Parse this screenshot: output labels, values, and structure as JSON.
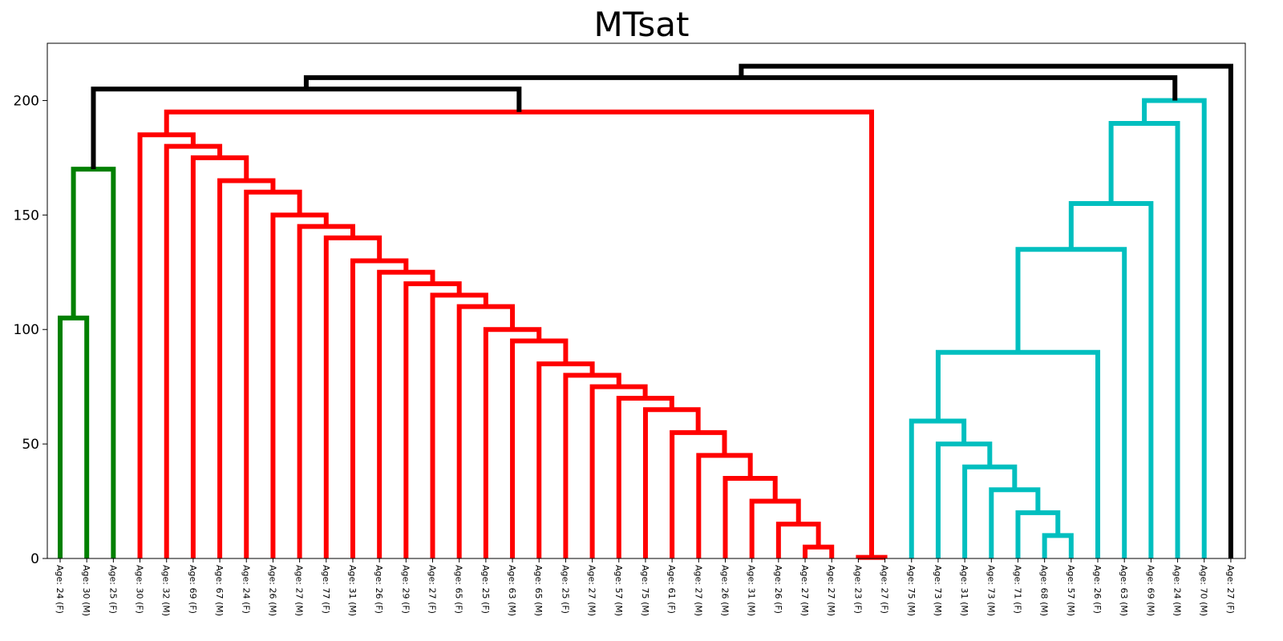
{
  "chart_data": {
    "type": "dendrogram",
    "title": "MTsat",
    "xlabel": "",
    "ylabel": "",
    "ylim": [
      0,
      225
    ],
    "y_ticks": [
      0,
      50,
      100,
      150,
      200
    ],
    "grid": false,
    "leaves": [
      "Age: 24 (F)",
      "Age: 30 (M)",
      "Age: 25 (F)",
      "Age: 30 (F)",
      "Age: 32 (M)",
      "Age: 69 (F)",
      "Age: 67 (M)",
      "Age: 24 (F)",
      "Age: 26 (M)",
      "Age: 27 (M)",
      "Age: 77 (F)",
      "Age: 31 (M)",
      "Age: 26 (F)",
      "Age: 29 (F)",
      "Age: 27 (F)",
      "Age: 65 (F)",
      "Age: 25 (F)",
      "Age: 63 (M)",
      "Age: 65 (M)",
      "Age: 25 (F)",
      "Age: 27 (M)",
      "Age: 57 (M)",
      "Age: 75 (M)",
      "Age: 61 (F)",
      "Age: 27 (M)",
      "Age: 26 (M)",
      "Age: 31 (M)",
      "Age: 26 (F)",
      "Age: 27 (M)",
      "Age: 27 (M)",
      "Age: 23 (F)",
      "Age: 27 (F)",
      "Age: 75 (M)",
      "Age: 73 (M)",
      "Age: 31 (M)",
      "Age: 73 (M)",
      "Age: 71 (F)",
      "Age: 68 (M)",
      "Age: 57 (M)",
      "Age: 26 (F)",
      "Age: 63 (M)",
      "Age: 69 (M)",
      "Age: 24 (M)",
      "Age: 70 (M)",
      "Age: 27 (F)"
    ],
    "colors": {
      "green": "#008000",
      "red": "#ff0000",
      "cyan": "#00bfbf",
      "black": "#000000"
    },
    "links": [
      {
        "left": [
          0,
          0
        ],
        "right": [
          1,
          0
        ],
        "height": 105,
        "color": "green"
      },
      {
        "left": [
          0.5,
          105
        ],
        "right": [
          2,
          0
        ],
        "height": 170,
        "color": "green"
      },
      {
        "left": [
          28,
          0
        ],
        "right": [
          29,
          0
        ],
        "height": 5,
        "color": "red"
      },
      {
        "left": [
          27,
          0
        ],
        "right": [
          28.5,
          5
        ],
        "height": 15,
        "color": "red"
      },
      {
        "left": [
          26,
          0
        ],
        "right": [
          27.75,
          15
        ],
        "height": 25,
        "color": "red"
      },
      {
        "left": [
          25,
          0
        ],
        "right": [
          26.875,
          25
        ],
        "height": 35,
        "color": "red"
      },
      {
        "left": [
          24,
          0
        ],
        "right": [
          25.94,
          35
        ],
        "height": 45,
        "color": "red"
      },
      {
        "left": [
          23,
          0
        ],
        "right": [
          24.97,
          45
        ],
        "height": 55,
        "color": "red"
      },
      {
        "left": [
          22,
          0
        ],
        "right": [
          23.98,
          55
        ],
        "height": 65,
        "color": "red"
      },
      {
        "left": [
          21,
          0
        ],
        "right": [
          22.99,
          65
        ],
        "height": 70,
        "color": "red"
      },
      {
        "left": [
          20,
          0
        ],
        "right": [
          21.99,
          70
        ],
        "height": 75,
        "color": "red"
      },
      {
        "left": [
          19,
          0
        ],
        "right": [
          21.0,
          75
        ],
        "height": 80,
        "color": "red"
      },
      {
        "left": [
          18,
          0
        ],
        "right": [
          20.0,
          80
        ],
        "height": 85,
        "color": "red"
      },
      {
        "left": [
          17,
          0
        ],
        "right": [
          19.0,
          85
        ],
        "height": 95,
        "color": "red"
      },
      {
        "left": [
          16,
          0
        ],
        "right": [
          18.0,
          95
        ],
        "height": 100,
        "color": "red"
      },
      {
        "left": [
          15,
          0
        ],
        "right": [
          17.0,
          100
        ],
        "height": 110,
        "color": "red"
      },
      {
        "left": [
          14,
          0
        ],
        "right": [
          16.0,
          110
        ],
        "height": 115,
        "color": "red"
      },
      {
        "left": [
          13,
          0
        ],
        "right": [
          15.0,
          115
        ],
        "height": 120,
        "color": "red"
      },
      {
        "left": [
          12,
          0
        ],
        "right": [
          14.0,
          120
        ],
        "height": 125,
        "color": "red"
      },
      {
        "left": [
          11,
          0
        ],
        "right": [
          13.0,
          125
        ],
        "height": 130,
        "color": "red"
      },
      {
        "left": [
          10,
          0
        ],
        "right": [
          12.0,
          130
        ],
        "height": 140,
        "color": "red"
      },
      {
        "left": [
          9,
          0
        ],
        "right": [
          11.0,
          140
        ],
        "height": 145,
        "color": "red"
      },
      {
        "left": [
          8,
          0
        ],
        "right": [
          10.0,
          145
        ],
        "height": 150,
        "color": "red"
      },
      {
        "left": [
          7,
          0
        ],
        "right": [
          9.0,
          150
        ],
        "height": 160,
        "color": "red"
      },
      {
        "left": [
          6,
          0
        ],
        "right": [
          8.0,
          160
        ],
        "height": 165,
        "color": "red"
      },
      {
        "left": [
          5,
          0
        ],
        "right": [
          7.0,
          165
        ],
        "height": 175,
        "color": "red"
      },
      {
        "left": [
          4,
          0
        ],
        "right": [
          6.0,
          175
        ],
        "height": 180,
        "color": "red"
      },
      {
        "left": [
          3,
          0
        ],
        "right": [
          5.0,
          180
        ],
        "height": 185,
        "color": "red"
      },
      {
        "left": [
          30,
          0
        ],
        "right": [
          31,
          0
        ],
        "height": 0.5,
        "color": "red"
      },
      {
        "left": [
          4.0,
          185
        ],
        "right": [
          30.5,
          0.5
        ],
        "height": 195,
        "color": "red"
      },
      {
        "left": [
          37,
          0
        ],
        "right": [
          38,
          0
        ],
        "height": 10,
        "color": "cyan"
      },
      {
        "left": [
          36,
          0
        ],
        "right": [
          37.5,
          10
        ],
        "height": 20,
        "color": "cyan"
      },
      {
        "left": [
          35,
          0
        ],
        "right": [
          36.75,
          20
        ],
        "height": 30,
        "color": "cyan"
      },
      {
        "left": [
          34,
          0
        ],
        "right": [
          35.875,
          30
        ],
        "height": 40,
        "color": "cyan"
      },
      {
        "left": [
          33,
          0
        ],
        "right": [
          34.94,
          40
        ],
        "height": 50,
        "color": "cyan"
      },
      {
        "left": [
          32,
          0
        ],
        "right": [
          33.97,
          50
        ],
        "height": 60,
        "color": "cyan"
      },
      {
        "left": [
          33.0,
          60
        ],
        "right": [
          39,
          0
        ],
        "height": 90,
        "color": "cyan"
      },
      {
        "left": [
          36.0,
          90
        ],
        "right": [
          40,
          0
        ],
        "height": 135,
        "color": "cyan"
      },
      {
        "left": [
          38.0,
          135
        ],
        "right": [
          41,
          0
        ],
        "height": 155,
        "color": "cyan"
      },
      {
        "left": [
          39.5,
          155
        ],
        "right": [
          42,
          0
        ],
        "height": 190,
        "color": "cyan"
      },
      {
        "left": [
          40.75,
          190
        ],
        "right": [
          43,
          0
        ],
        "height": 200,
        "color": "cyan"
      },
      {
        "left": [
          1.25,
          170
        ],
        "right": [
          17.25,
          195
        ],
        "height": 205,
        "color": "black"
      },
      {
        "left": [
          9.25,
          205
        ],
        "right": [
          41.9,
          200
        ],
        "height": 210,
        "color": "black"
      },
      {
        "left": [
          25.6,
          210
        ],
        "right": [
          44,
          0
        ],
        "height": 215,
        "color": "black"
      }
    ]
  }
}
